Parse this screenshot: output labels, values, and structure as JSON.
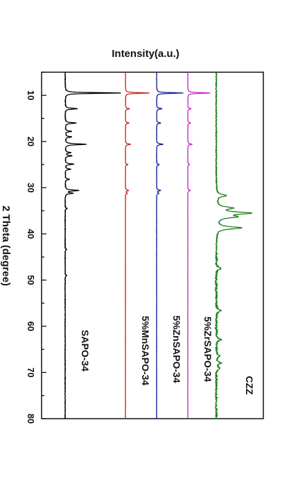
{
  "chart_data": {
    "type": "line",
    "orientation": "rotated-90",
    "title": "Intensity(a.u.)",
    "xlabel": "2 Theta (degree)",
    "ylabel": "Intensity(a.u.)",
    "xlim": [
      5,
      80
    ],
    "xticks": [
      "10",
      "20",
      "30",
      "40",
      "50",
      "60",
      "70",
      "80"
    ],
    "y_units": "arbitrary (stacked traces)",
    "grid": false,
    "legend": "inline labels beside each trace",
    "series": [
      {
        "name": "SAPO-34",
        "color": "#000000",
        "offset": 0,
        "peaks": [
          [
            9.5,
            1.0
          ],
          [
            12.9,
            0.22
          ],
          [
            16.0,
            0.2
          ],
          [
            17.8,
            0.12
          ],
          [
            19.0,
            0.12
          ],
          [
            20.6,
            0.38
          ],
          [
            22.4,
            0.1
          ],
          [
            23.1,
            0.12
          ],
          [
            24.9,
            0.16
          ],
          [
            26.0,
            0.1
          ],
          [
            28.2,
            0.08
          ],
          [
            30.6,
            0.25
          ],
          [
            31.2,
            0.14
          ],
          [
            34.5,
            0.04
          ],
          [
            43.4,
            0.03
          ],
          [
            49.0,
            0.03
          ]
        ]
      },
      {
        "name": "5%MnSAPO-34",
        "color": "#cc2222",
        "offset": 1,
        "peaks": [
          [
            9.5,
            1.0
          ],
          [
            12.9,
            0.18
          ],
          [
            16.0,
            0.15
          ],
          [
            20.6,
            0.22
          ],
          [
            25.0,
            0.1
          ],
          [
            30.6,
            0.14
          ],
          [
            31.2,
            0.08
          ]
        ]
      },
      {
        "name": "5%ZnSAPO-34",
        "color": "#1a1a9e",
        "offset": 2,
        "peaks": [
          [
            9.5,
            1.0
          ],
          [
            12.9,
            0.2
          ],
          [
            16.0,
            0.16
          ],
          [
            20.6,
            0.25
          ],
          [
            25.0,
            0.1
          ],
          [
            30.6,
            0.15
          ],
          [
            31.2,
            0.09
          ]
        ]
      },
      {
        "name": "5%ZrSAPO-34",
        "color": "#cc22cc",
        "offset": 3,
        "peaks": [
          [
            9.5,
            1.0
          ],
          [
            12.9,
            0.15
          ],
          [
            16.0,
            0.12
          ],
          [
            20.6,
            0.2
          ],
          [
            25.0,
            0.08
          ],
          [
            30.6,
            0.12
          ]
        ]
      },
      {
        "name": "CZZ",
        "color": "#1e7e1e",
        "offset": 4,
        "peaks": [
          [
            31.7,
            0.3
          ],
          [
            34.4,
            0.45
          ],
          [
            35.5,
            1.0
          ],
          [
            36.3,
            0.55
          ],
          [
            38.7,
            0.75
          ],
          [
            47.5,
            0.12
          ],
          [
            56.6,
            0.15
          ],
          [
            62.9,
            0.14
          ],
          [
            66.4,
            0.1
          ],
          [
            68.0,
            0.14
          ],
          [
            69.1,
            0.1
          ]
        ]
      }
    ]
  }
}
